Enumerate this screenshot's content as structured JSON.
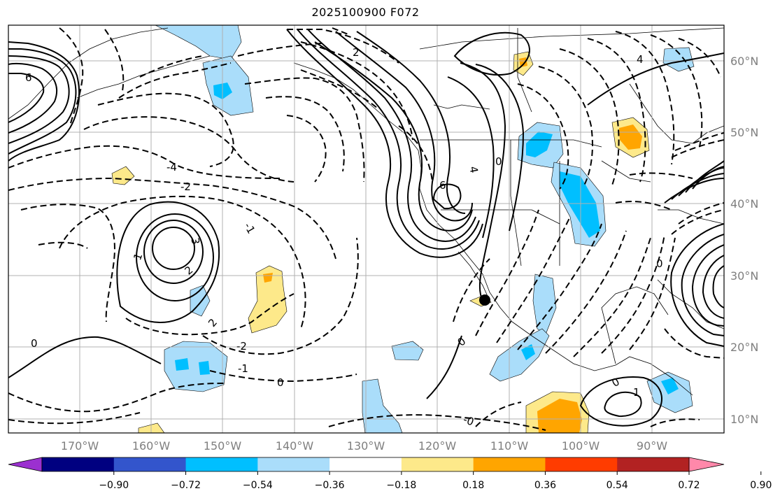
{
  "title": "2025100900 F072",
  "map": {
    "projection": "cylindrical",
    "extent": {
      "lon": [
        -180,
        -80
      ],
      "lat": [
        8,
        65
      ]
    },
    "grid": true,
    "marker": {
      "lon": -113,
      "lat": 26.5
    },
    "longitude_ticks": [
      "170°W",
      "160°W",
      "150°W",
      "140°W",
      "130°W",
      "120°W",
      "110°W",
      "100°W",
      "90°W"
    ],
    "latitude_ticks": [
      "10°N",
      "20°N",
      "30°N",
      "40°N",
      "50°N",
      "60°N"
    ],
    "contour_labels": [
      "-4",
      "-2",
      "-1",
      "1",
      "2",
      "3",
      "0",
      "-2",
      "-1",
      "0",
      "2",
      "6",
      "4",
      "6",
      "0",
      "0",
      "-0",
      "0",
      "1",
      "2",
      "4",
      "0"
    ]
  },
  "colorbar": {
    "colors": [
      "#9b30d0",
      "#000080",
      "#3355cc",
      "#00bfff",
      "#aaddfa",
      "#ffffff",
      "#fde98a",
      "#ffa500",
      "#ff3c00",
      "#b22222",
      "#ff88aa"
    ],
    "tick_labels": [
      "−0.90",
      "−0.72",
      "−0.54",
      "−0.36",
      "−0.18",
      "0.18",
      "0.36",
      "0.54",
      "0.72",
      "0.90"
    ]
  }
}
